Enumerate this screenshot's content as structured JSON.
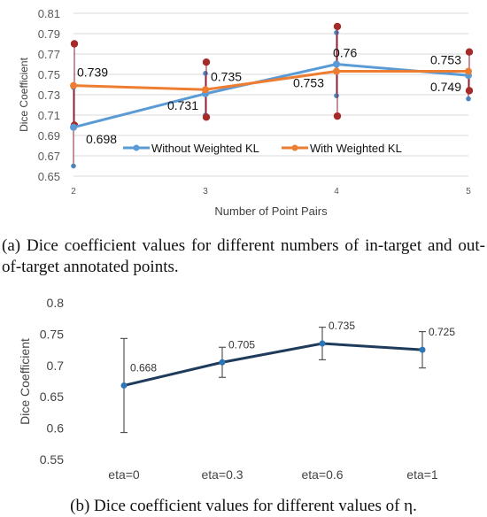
{
  "charts": [
    {
      "type": "line",
      "xlabel": "Number of Point Pairs",
      "ylabel": "Dice Coefficient",
      "categories": [
        "2",
        "3",
        "4",
        "5"
      ],
      "ylim": [
        0.65,
        0.81
      ],
      "yticks": [
        "0.65",
        "0.67",
        "0.69",
        "0.71",
        "0.73",
        "0.75",
        "0.77",
        "0.79",
        "0.81"
      ],
      "grid": true,
      "legend_position": "inside-bottom-center",
      "series": [
        {
          "name": "Without Weighted KL",
          "color": "#5b9bd5",
          "values": [
            0.698,
            0.731,
            0.76,
            0.749
          ],
          "labels": [
            "0.698",
            "0.731",
            "0.76",
            "0.749"
          ],
          "error_low": [
            0.66,
            0.71,
            0.729,
            0.726
          ],
          "error_high": [
            0.737,
            0.751,
            0.791,
            0.752
          ]
        },
        {
          "name": "With Weighted KL",
          "color": "#ed7d31",
          "values": [
            0.739,
            0.735,
            0.753,
            0.753
          ],
          "labels": [
            "0.739",
            "0.735",
            "0.753",
            "0.753"
          ],
          "error_low": [
            0.7,
            0.708,
            0.709,
            0.734
          ],
          "error_high": [
            0.78,
            0.762,
            0.797,
            0.772
          ]
        }
      ]
    },
    {
      "type": "line",
      "xlabel": "",
      "ylabel": "Dice Coefficient",
      "categories": [
        "eta=0",
        "eta=0.3",
        "eta=0.6",
        "eta=1"
      ],
      "ylim": [
        0.55,
        0.8
      ],
      "yticks": [
        "0.55",
        "0.6",
        "0.65",
        "0.7",
        "0.75",
        "0.8"
      ],
      "grid": false,
      "series": [
        {
          "name": "",
          "color": "#1f3b5c",
          "values": [
            0.668,
            0.705,
            0.735,
            0.725
          ],
          "labels": [
            "0.668",
            "0.705",
            "0.735",
            "0.725"
          ],
          "error_low": [
            0.593,
            0.681,
            0.709,
            0.696
          ],
          "error_high": [
            0.743,
            0.729,
            0.761,
            0.754
          ]
        }
      ]
    }
  ],
  "captions": {
    "a": "(a) Dice coefficient values for different numbers of in-target and out-of-target annotated points.",
    "b": "(b) Dice coefficient values for different values of η."
  }
}
